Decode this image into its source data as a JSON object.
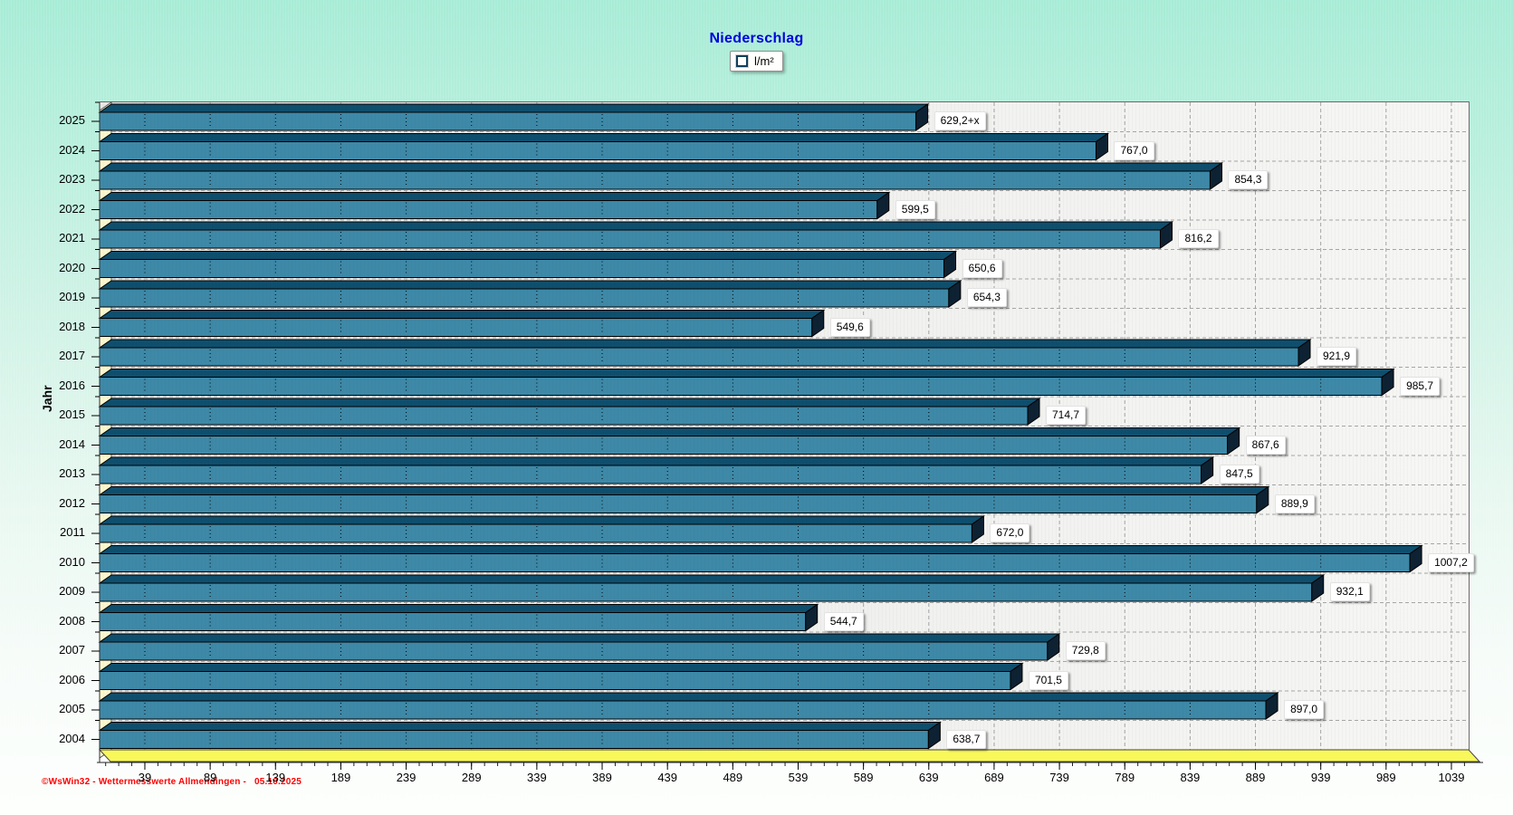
{
  "title": "Niederschlag",
  "legend": {
    "label": "l/m²"
  },
  "footer": "©WsWin32 - Wettermesswerte Allmendingen -   05.10.2025",
  "chart_data": {
    "type": "bar",
    "orientation": "horizontal",
    "title": "Niederschlag",
    "unit": "l/m²",
    "xlabel": "",
    "ylabel": "Jahr",
    "categories": [
      "2025",
      "2024",
      "2023",
      "2022",
      "2021",
      "2020",
      "2019",
      "2018",
      "2017",
      "2016",
      "2015",
      "2014",
      "2013",
      "2012",
      "2011",
      "2010",
      "2009",
      "2008",
      "2007",
      "2006",
      "2005",
      "2004"
    ],
    "values": [
      629.2,
      767.0,
      854.3,
      599.5,
      816.2,
      650.6,
      654.3,
      549.6,
      921.9,
      985.7,
      714.7,
      867.6,
      847.5,
      889.9,
      672.0,
      1007.2,
      932.1,
      544.7,
      729.8,
      701.5,
      897.0,
      638.7
    ],
    "value_labels": [
      "629,2+x",
      "767,0",
      "854,3",
      "599,5",
      "816,2",
      "650,6",
      "654,3",
      "549,6",
      "921,9",
      "985,7",
      "714,7",
      "867,6",
      "847,5",
      "889,9",
      "672,0",
      "1007,2",
      "932,1",
      "544,7",
      "729,8",
      "701,5",
      "897,0",
      "638,7"
    ],
    "x_ticks": [
      39,
      89,
      139,
      189,
      239,
      289,
      339,
      389,
      439,
      489,
      539,
      589,
      639,
      689,
      739,
      789,
      839,
      889,
      939,
      989,
      1039
    ],
    "x_minor_step": 10,
    "xlim": [
      4,
      1052
    ],
    "grid": true,
    "legend_position": "top-center",
    "colors": {
      "bar_face": "#3E89A8",
      "bar_top": "#0F4F6E",
      "bar_side": "#0D2233",
      "bar_outline": "#000000",
      "wall": "#FBF7CF",
      "floor": "#F8F85A",
      "plot_grid": "#A6A6A6",
      "title_text": "#0000DD",
      "footer_text": "#FF0000",
      "axis_text": "#000000"
    }
  }
}
